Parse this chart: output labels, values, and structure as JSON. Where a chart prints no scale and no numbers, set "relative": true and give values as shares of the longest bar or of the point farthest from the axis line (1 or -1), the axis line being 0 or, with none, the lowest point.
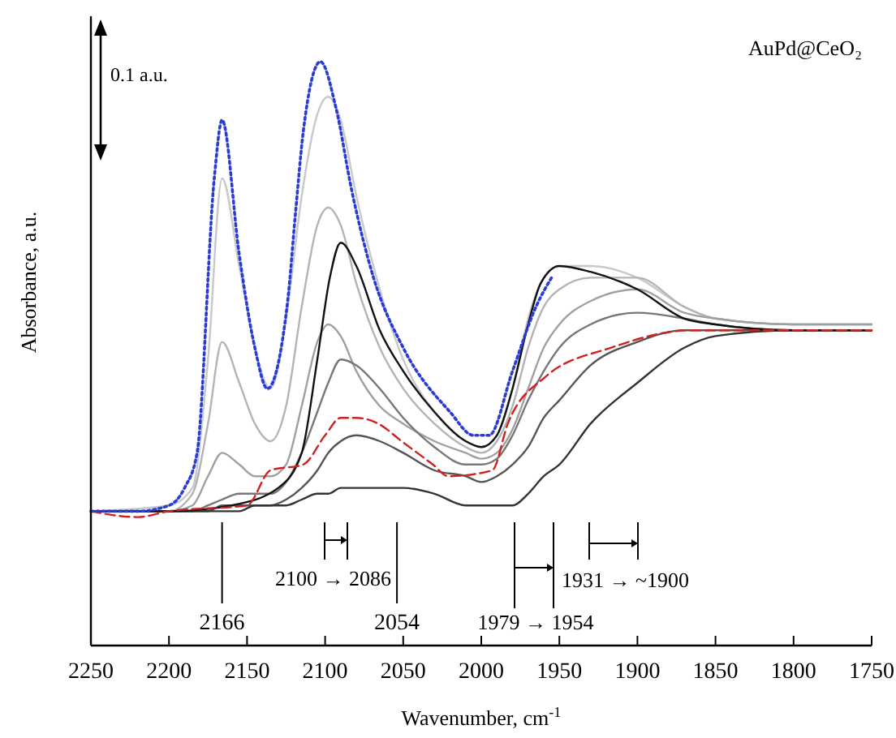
{
  "chart_data": {
    "type": "line",
    "title": "AuPd@CeO₂",
    "xlabel": "Wavenumber, cm$^{-1}$",
    "ylabel": "Absorbance, a.u.",
    "relative": true,
    "xlim": [
      2250,
      1750
    ],
    "xticks": [
      2250,
      2200,
      2150,
      2100,
      2050,
      2000,
      1950,
      1900,
      1850,
      1800,
      1750
    ],
    "x": [
      2250,
      2200,
      2185,
      2175,
      2166,
      2155,
      2145,
      2135,
      2125,
      2115,
      2105,
      2098,
      2090,
      2080,
      2065,
      2050,
      2030,
      2010,
      2000,
      1990,
      1980,
      1970,
      1960,
      1950,
      1930,
      1900,
      1870,
      1850,
      1800,
      1750
    ],
    "series": [
      {
        "color": "#c8c8c8",
        "values": [
          0.23,
          0.24,
          0.27,
          0.49,
          0.8,
          0.65,
          0.51,
          0.44,
          0.56,
          0.77,
          0.91,
          0.94,
          0.9,
          0.77,
          0.61,
          0.49,
          0.4,
          0.35,
          0.34,
          0.36,
          0.44,
          0.56,
          0.63,
          0.65,
          0.65,
          0.63,
          0.58,
          0.56,
          0.55,
          0.55
        ]
      },
      {
        "color": "#b4b4b4",
        "values": [
          0.23,
          0.23,
          0.26,
          0.38,
          0.52,
          0.45,
          0.38,
          0.35,
          0.41,
          0.58,
          0.72,
          0.75,
          0.72,
          0.62,
          0.51,
          0.44,
          0.38,
          0.34,
          0.33,
          0.35,
          0.41,
          0.51,
          0.58,
          0.61,
          0.63,
          0.63,
          0.58,
          0.56,
          0.55,
          0.55
        ]
      },
      {
        "color": "#a0a0a0",
        "values": [
          0.23,
          0.23,
          0.24,
          0.29,
          0.33,
          0.31,
          0.29,
          0.29,
          0.31,
          0.41,
          0.52,
          0.55,
          0.53,
          0.47,
          0.41,
          0.38,
          0.35,
          0.33,
          0.32,
          0.33,
          0.37,
          0.44,
          0.51,
          0.55,
          0.59,
          0.61,
          0.57,
          0.56,
          0.55,
          0.55
        ]
      },
      {
        "color": "#777777",
        "values": [
          0.23,
          0.23,
          0.23,
          0.24,
          0.25,
          0.26,
          0.26,
          0.26,
          0.28,
          0.33,
          0.4,
          0.45,
          0.49,
          0.48,
          0.44,
          0.39,
          0.34,
          0.31,
          0.31,
          0.32,
          0.36,
          0.42,
          0.47,
          0.51,
          0.55,
          0.57,
          0.56,
          0.55,
          0.54,
          0.54
        ]
      },
      {
        "color": "#555555",
        "values": [
          0.23,
          0.23,
          0.23,
          0.23,
          0.24,
          0.24,
          0.24,
          0.24,
          0.25,
          0.27,
          0.3,
          0.33,
          0.35,
          0.36,
          0.35,
          0.33,
          0.3,
          0.29,
          0.28,
          0.29,
          0.31,
          0.34,
          0.39,
          0.42,
          0.48,
          0.52,
          0.54,
          0.54,
          0.54,
          0.54
        ]
      },
      {
        "color": "#333333",
        "values": [
          0.23,
          0.23,
          0.23,
          0.23,
          0.23,
          0.23,
          0.24,
          0.24,
          0.24,
          0.25,
          0.26,
          0.26,
          0.27,
          0.27,
          0.27,
          0.27,
          0.26,
          0.24,
          0.24,
          0.24,
          0.24,
          0.26,
          0.29,
          0.31,
          0.38,
          0.45,
          0.51,
          0.53,
          0.54,
          0.54
        ]
      },
      {
        "color": "#111111",
        "x": [
          2250,
          2200,
          2160,
          2130,
          2115,
          2105,
          2097,
          2090,
          2080,
          2065,
          2050,
          2030,
          2010,
          2000,
          1990,
          1980,
          1970,
          1962,
          1950,
          1930,
          1900,
          1870,
          1850,
          1800,
          1750
        ],
        "values": [
          0.23,
          0.23,
          0.24,
          0.27,
          0.33,
          0.49,
          0.63,
          0.69,
          0.65,
          0.54,
          0.47,
          0.4,
          0.35,
          0.34,
          0.36,
          0.44,
          0.55,
          0.62,
          0.65,
          0.64,
          0.61,
          0.56,
          0.55,
          0.54,
          0.54
        ]
      },
      {
        "color": "#cc2222",
        "line_style": "dashed",
        "x": [
          2250,
          2220,
          2200,
          2150,
          2135,
          2114,
          2100,
          2090,
          2080,
          2066,
          2051,
          2031,
          2021,
          1993,
          1983,
          1959,
          1917,
          1865,
          1800,
          1750
        ],
        "values": [
          0.23,
          0.22,
          0.23,
          0.24,
          0.3,
          0.31,
          0.36,
          0.39,
          0.39,
          0.38,
          0.35,
          0.31,
          0.29,
          0.3,
          0.38,
          0.46,
          0.51,
          0.54,
          0.54,
          0.54
        ]
      },
      {
        "color": "#2a3bd6",
        "line_style": "dotted",
        "x": [
          2250,
          2220,
          2200,
          2190,
          2182,
          2171,
          2166,
          2155,
          2145,
          2137,
          2124,
          2119,
          2114,
          2103,
          2093,
          2083,
          2069,
          2050,
          2020,
          2005,
          1995,
          1980,
          1965,
          1955
        ],
        "values": [
          0.23,
          0.23,
          0.24,
          0.27,
          0.33,
          0.8,
          0.9,
          0.67,
          0.51,
          0.44,
          0.59,
          0.74,
          0.88,
          1,
          0.92,
          0.78,
          0.63,
          0.51,
          0.4,
          0.36,
          0.36,
          0.47,
          0.58,
          0.63
        ]
      }
    ],
    "annotations": [
      "0.1 a.u.",
      {
        "text": "2166",
        "x": 2166
      },
      "2100 → 2086",
      {
        "text": "2054",
        "x": 2054
      },
      "1979 → 1954",
      "1931 → ~1900"
    ]
  }
}
